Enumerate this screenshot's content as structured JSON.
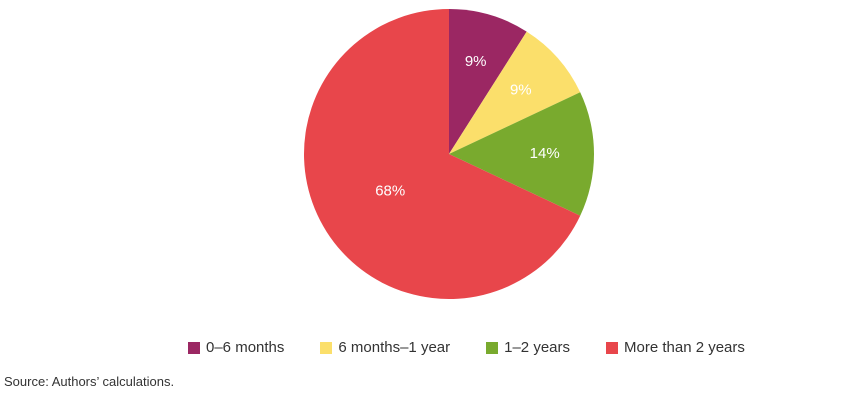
{
  "chart_data": {
    "type": "pie",
    "categories": [
      "0–6 months",
      "6 months–1 year",
      "1–2 years",
      "More than 2 years"
    ],
    "values": [
      9,
      9,
      14,
      68
    ],
    "labels": [
      "9%",
      "9%",
      "14%",
      "68%"
    ],
    "colors": [
      "#9b2763",
      "#fbdf6b",
      "#79aa2e",
      "#e8464b"
    ],
    "legend_position": "bottom"
  },
  "legend": {
    "items": [
      {
        "label": "0–6 months",
        "color": "#9b2763"
      },
      {
        "label": "6 months–1 year",
        "color": "#fbdf6b"
      },
      {
        "label": "1–2 years",
        "color": "#79aa2e"
      },
      {
        "label": "More than 2 years",
        "color": "#e8464b"
      }
    ]
  },
  "source": "Source: Authors’ calculations."
}
